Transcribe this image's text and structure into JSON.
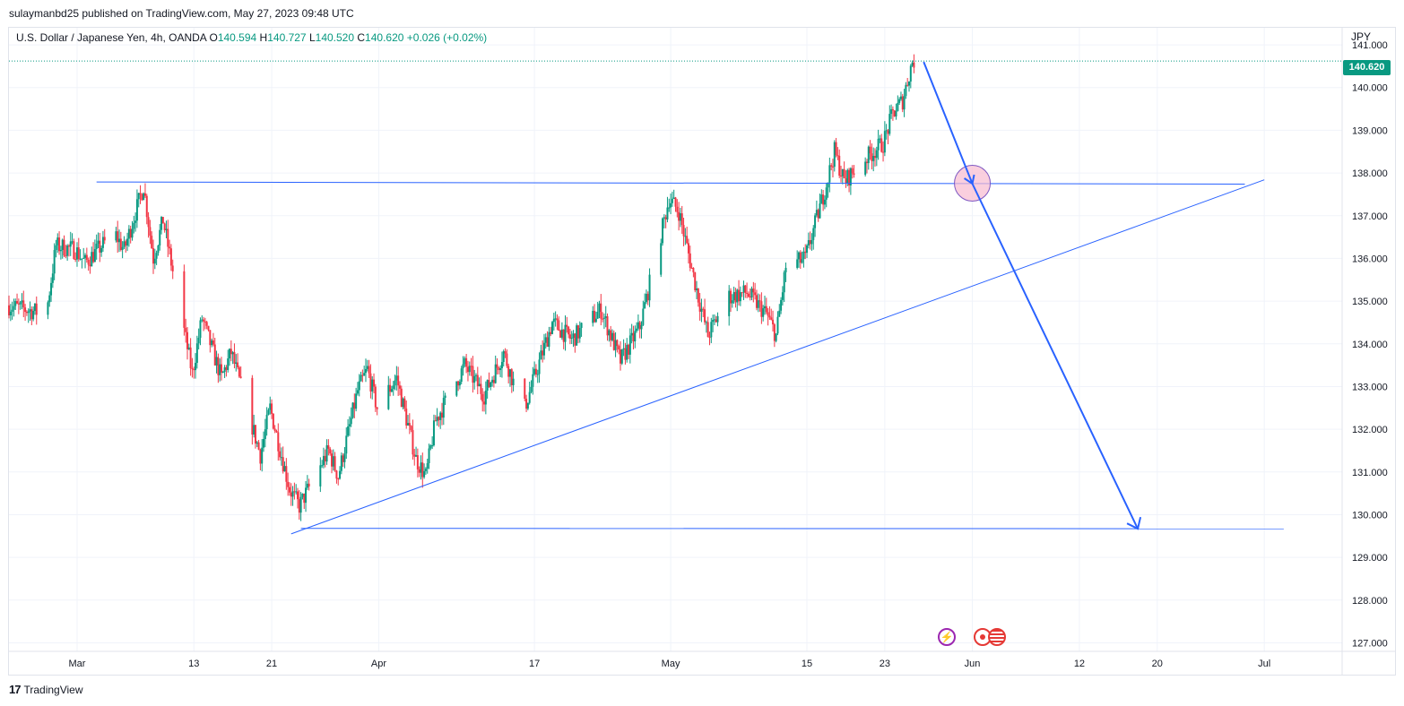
{
  "header": {
    "published_by": "sulaymanbd25 published on TradingView.com, May 27, 2023 09:48 UTC"
  },
  "legend": {
    "symbol": "U.S. Dollar / Japanese Yen, 4h, OANDA",
    "open_label": "O",
    "open": "140.594",
    "high_label": "H",
    "high": "140.727",
    "low_label": "L",
    "low": "140.520",
    "close_label": "C",
    "close": "140.620",
    "change": "+0.026 (+0.02%)"
  },
  "currency": "JPY",
  "last_price": "140.620",
  "footer": {
    "logo_glyph": "17",
    "brand": "TradingView"
  },
  "colors": {
    "up": "#089981",
    "down": "#f23645",
    "drawing": "#2962ff",
    "grid": "#f0f3fa",
    "circle_fill": "#f8bbd0",
    "circle_stroke": "#7e57c2"
  },
  "events": [
    "flash-icon",
    "jpy-event-icon",
    "usd-event-icon"
  ],
  "chart_data": {
    "type": "candlestick",
    "title": "",
    "y_axis": {
      "range": [
        126.8,
        141.4
      ],
      "tick_labels": [
        "127.000",
        "128.000",
        "129.000",
        "130.000",
        "131.000",
        "132.000",
        "133.000",
        "134.000",
        "135.000",
        "136.000",
        "137.000",
        "138.000",
        "139.000",
        "140.000",
        "141.000"
      ],
      "ticks": [
        127,
        128,
        129,
        130,
        131,
        132,
        133,
        134,
        135,
        136,
        137,
        138,
        139,
        140,
        141
      ]
    },
    "x_axis": {
      "range": [
        "2023-02-22",
        "2023-07-09"
      ],
      "ticks": [
        {
          "date": "2023-03-01",
          "label": "Mar"
        },
        {
          "date": "2023-03-13",
          "label": "13"
        },
        {
          "date": "2023-03-21",
          "label": "21"
        },
        {
          "date": "2023-04-01",
          "label": "Apr"
        },
        {
          "date": "2023-04-17",
          "label": "17"
        },
        {
          "date": "2023-05-01",
          "label": "May"
        },
        {
          "date": "2023-05-15",
          "label": "15"
        },
        {
          "date": "2023-05-23",
          "label": "23"
        },
        {
          "date": "2023-06-01",
          "label": "Jun"
        },
        {
          "date": "2023-06-12",
          "label": "12"
        },
        {
          "date": "2023-06-20",
          "label": "20"
        },
        {
          "date": "2023-07-01",
          "label": "Jul"
        }
      ]
    },
    "price_path": [
      {
        "date": "2023-02-22",
        "price": 134.9
      },
      {
        "date": "2023-02-26",
        "price": 134.7
      },
      {
        "date": "2023-02-27",
        "price": 136.3
      },
      {
        "date": "2023-03-01",
        "price": 136.2
      },
      {
        "date": "2023-03-02",
        "price": 135.9
      },
      {
        "date": "2023-03-05",
        "price": 136.6
      },
      {
        "date": "2023-03-06",
        "price": 136.2
      },
      {
        "date": "2023-03-08",
        "price": 137.7
      },
      {
        "date": "2023-03-09",
        "price": 136.0
      },
      {
        "date": "2023-03-10",
        "price": 136.9
      },
      {
        "date": "2023-03-13",
        "price": 133.3
      },
      {
        "date": "2023-03-14",
        "price": 134.6
      },
      {
        "date": "2023-03-16",
        "price": 133.2
      },
      {
        "date": "2023-03-17",
        "price": 133.8
      },
      {
        "date": "2023-03-20",
        "price": 131.4
      },
      {
        "date": "2023-03-21",
        "price": 132.5
      },
      {
        "date": "2023-03-23",
        "price": 130.6
      },
      {
        "date": "2023-03-24",
        "price": 130.2
      },
      {
        "date": "2023-03-27",
        "price": 131.5
      },
      {
        "date": "2023-03-28",
        "price": 130.9
      },
      {
        "date": "2023-03-30",
        "price": 132.9
      },
      {
        "date": "2023-03-31",
        "price": 133.4
      },
      {
        "date": "2023-04-01",
        "price": 132.5
      },
      {
        "date": "2023-04-03",
        "price": 133.2
      },
      {
        "date": "2023-04-05",
        "price": 131.3
      },
      {
        "date": "2023-04-06",
        "price": 130.9
      },
      {
        "date": "2023-04-07",
        "price": 132.2
      },
      {
        "date": "2023-04-10",
        "price": 133.5
      },
      {
        "date": "2023-04-12",
        "price": 132.8
      },
      {
        "date": "2023-04-14",
        "price": 133.8
      },
      {
        "date": "2023-04-16",
        "price": 132.4
      },
      {
        "date": "2023-04-19",
        "price": 134.5
      },
      {
        "date": "2023-04-21",
        "price": 134.1
      },
      {
        "date": "2023-04-24",
        "price": 134.8
      },
      {
        "date": "2023-04-26",
        "price": 133.6
      },
      {
        "date": "2023-04-28",
        "price": 134.4
      },
      {
        "date": "2023-05-01",
        "price": 137.4
      },
      {
        "date": "2023-05-02",
        "price": 137.1
      },
      {
        "date": "2023-05-04",
        "price": 135.1
      },
      {
        "date": "2023-05-05",
        "price": 134.2
      },
      {
        "date": "2023-05-07",
        "price": 135.1
      },
      {
        "date": "2023-05-09",
        "price": 135.2
      },
      {
        "date": "2023-05-11",
        "price": 134.7
      },
      {
        "date": "2023-05-12",
        "price": 134.2
      },
      {
        "date": "2023-05-13",
        "price": 135.8
      },
      {
        "date": "2023-05-15",
        "price": 136.0
      },
      {
        "date": "2023-05-17",
        "price": 137.6
      },
      {
        "date": "2023-05-18",
        "price": 138.5
      },
      {
        "date": "2023-05-19",
        "price": 137.8
      },
      {
        "date": "2023-05-21",
        "price": 138.3
      },
      {
        "date": "2023-05-23",
        "price": 138.7
      },
      {
        "date": "2023-05-24",
        "price": 139.4
      },
      {
        "date": "2023-05-25",
        "price": 139.7
      },
      {
        "date": "2023-05-26",
        "price": 140.62
      }
    ],
    "drawings": {
      "resistance": {
        "from": {
          "date": "2023-03-03",
          "price": 137.79
        },
        "to": {
          "date": "2023-06-29",
          "price": 137.74
        }
      },
      "support": {
        "from": {
          "date": "2023-03-24",
          "price": 129.68
        },
        "to": {
          "date": "2023-07-03",
          "price": 129.67
        }
      },
      "trendline": {
        "from": {
          "date": "2023-03-23",
          "price": 129.55
        },
        "to": {
          "date": "2023-07-01",
          "price": 137.84
        }
      },
      "forecast_arrow": [
        {
          "date": "2023-05-27",
          "price": 140.6
        },
        {
          "date": "2023-06-01",
          "price": 137.75
        },
        {
          "date": "2023-06-18",
          "price": 129.67
        }
      ],
      "highlight_circle": {
        "date": "2023-06-01",
        "price": 137.76
      }
    }
  }
}
